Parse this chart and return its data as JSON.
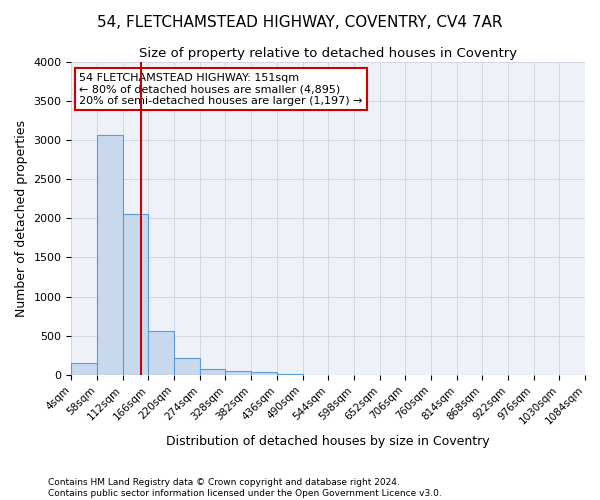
{
  "title1": "54, FLETCHAMSTEAD HIGHWAY, COVENTRY, CV4 7AR",
  "title2": "Size of property relative to detached houses in Coventry",
  "xlabel": "Distribution of detached houses by size in Coventry",
  "ylabel": "Number of detached properties",
  "bin_edges": [
    4,
    58,
    112,
    166,
    220,
    274,
    328,
    382,
    436,
    490,
    544,
    598,
    652,
    706,
    760,
    814,
    868,
    922,
    976,
    1030,
    1084
  ],
  "bar_heights": [
    150,
    3060,
    2060,
    560,
    220,
    80,
    55,
    40,
    10,
    5,
    5,
    3,
    2,
    2,
    2,
    2,
    1,
    1,
    1,
    1
  ],
  "bar_color": "#c8d9ee",
  "bar_edge_color": "#5b9bd5",
  "property_size": 151,
  "annotation_line1": "54 FLETCHAMSTEAD HIGHWAY: 151sqm",
  "annotation_line2": "← 80% of detached houses are smaller (4,895)",
  "annotation_line3": "20% of semi-detached houses are larger (1,197) →",
  "vline_color": "#cc0000",
  "annotation_box_edgecolor": "#cc0000",
  "ylim": [
    0,
    4000
  ],
  "yticks": [
    0,
    500,
    1000,
    1500,
    2000,
    2500,
    3000,
    3500,
    4000
  ],
  "footnote1": "Contains HM Land Registry data © Crown copyright and database right 2024.",
  "footnote2": "Contains public sector information licensed under the Open Government Licence v3.0.",
  "title1_fontsize": 11,
  "title2_fontsize": 9.5,
  "xlabel_fontsize": 9,
  "ylabel_fontsize": 9,
  "annotation_fontsize": 8,
  "footnote_fontsize": 6.5,
  "tick_fontsize": 7.5,
  "grid_color": "#d0d8e8",
  "background_color": "#eef2f8"
}
